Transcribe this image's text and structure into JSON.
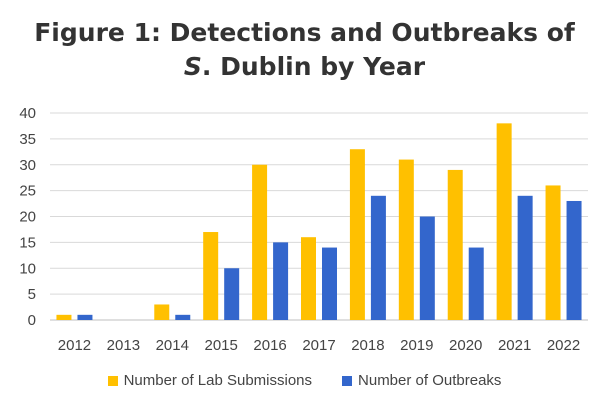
{
  "chart_data": {
    "type": "bar",
    "title_line1": "Figure 1: Detections and Outbreaks of",
    "title_line2_italic": "S",
    "title_line2_rest": ". Dublin by Year",
    "categories": [
      "2012",
      "2013",
      "2014",
      "2015",
      "2016",
      "2017",
      "2018",
      "2019",
      "2020",
      "2021",
      "2022"
    ],
    "series": [
      {
        "name": "Number of Lab Submissions",
        "color": "#FFC000",
        "values": [
          1,
          0,
          3,
          17,
          30,
          16,
          33,
          31,
          29,
          38,
          26
        ]
      },
      {
        "name": "Number of Outbreaks",
        "color": "#3366CC",
        "values": [
          1,
          0,
          1,
          10,
          15,
          14,
          24,
          20,
          14,
          24,
          23
        ]
      }
    ],
    "yticks": [
      "0",
      "5",
      "10",
      "15",
      "20",
      "25",
      "30",
      "35",
      "40"
    ],
    "ylim": [
      0,
      40
    ],
    "grid": true,
    "legend_position": "bottom"
  }
}
